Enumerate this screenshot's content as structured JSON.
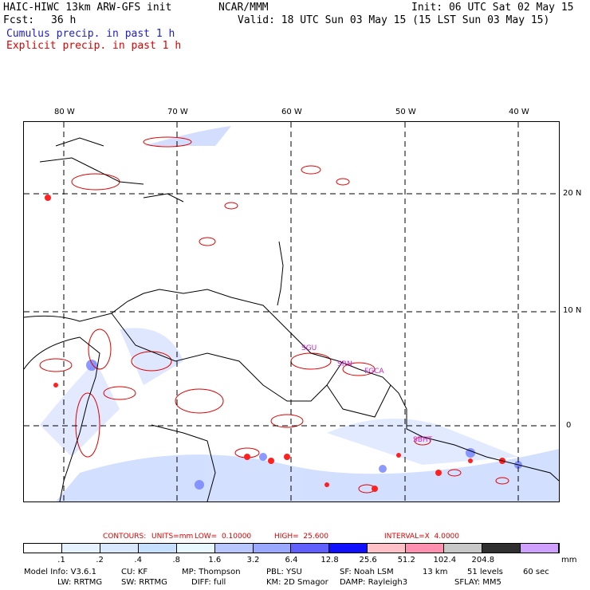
{
  "header": {
    "model": "HAIC-HIWC 13km ARW-GFS init",
    "org": "NCAR/MMM",
    "init": "Init: 06 UTC Sat 02 May 15",
    "fcst_label": "Fcst:",
    "fcst_value": "36 h",
    "valid": "Valid: 18 UTC Sun 03 May 15 (15 LST Sun 03 May 15)",
    "cumulus": "Cumulus precip. in past 1 h",
    "explicit": "Explicit precip. in past 1 h"
  },
  "map": {
    "lon_labels": [
      "80 W",
      "70 W",
      "60 W",
      "50 W",
      "40 W"
    ],
    "lat_labels": [
      "20 N",
      "10 N",
      "0"
    ],
    "place_labels": [
      "SGU",
      "SRN",
      "FGCA",
      "SBHT"
    ]
  },
  "contours": {
    "title": "CONTOURS:",
    "units": "UNITS=mm",
    "low": "LOW=  0.10000",
    "high": "HIGH=  25.600",
    "interval": "INTERVAL=X  4.0000"
  },
  "colorbar": {
    "colors": [
      "#ffffff",
      "#e6f2ff",
      "#d8e8ff",
      "#c8e0ff",
      "#e8f8ff",
      "#b8c8ff",
      "#9aa8ff",
      "#6060ff",
      "#1010ff",
      "#ffc0c8",
      "#ff90b0",
      "#c8c8c8",
      "#303030",
      "#d0a0ff"
    ],
    "labels": [
      ".1",
      ".2",
      ".4",
      ".8",
      "1.6",
      "3.2",
      "6.4",
      "12.8",
      "25.6",
      "51.2",
      "102.4",
      "204.8"
    ],
    "unit": "mm"
  },
  "footer": {
    "line1": [
      "Model Info: V3.6.1",
      "CU: KF",
      "MP: Thompson",
      "PBL: YSU",
      "SF: Noah LSM",
      "13 km",
      "51 levels",
      "60 sec"
    ],
    "line2": [
      "LW: RRTMG",
      "SW: RRTMG",
      "DIFF: full",
      "KM: 2D Smagor",
      "DAMP: Rayleigh3",
      "SFLAY: MM5"
    ]
  }
}
